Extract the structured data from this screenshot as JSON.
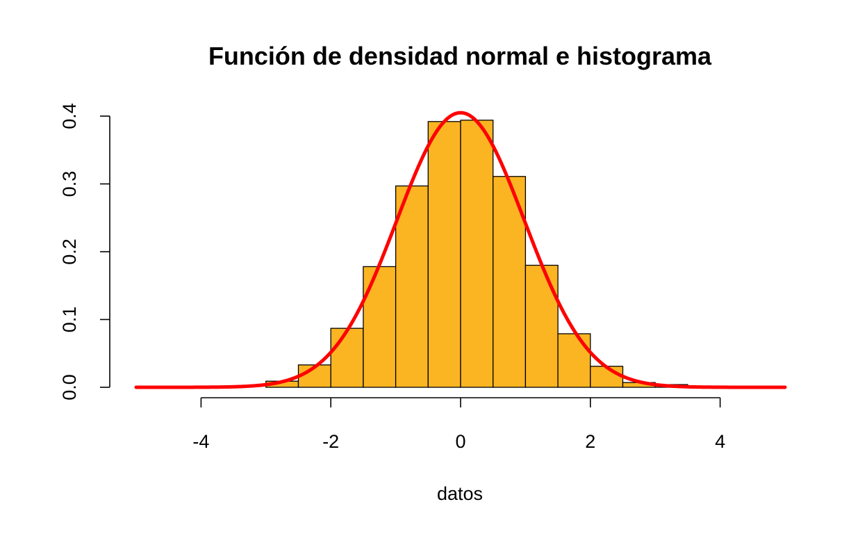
{
  "chart_data": {
    "type": "bar",
    "title": "Función de densidad normal e histograma",
    "xlabel": "datos",
    "ylabel": "",
    "xlim": [
      -5,
      5
    ],
    "ylim": [
      0,
      0.4
    ],
    "x_ticks": [
      "-4",
      "-2",
      "0",
      "2",
      "4"
    ],
    "x_tick_values": [
      -4,
      -2,
      0,
      2,
      4
    ],
    "y_ticks": [
      "0.0",
      "0.1",
      "0.2",
      "0.3",
      "0.4"
    ],
    "y_tick_values": [
      0,
      0.1,
      0.2,
      0.3,
      0.4
    ],
    "grid": false,
    "series": [
      {
        "kind": "histogram",
        "bin_edges": [
          -3.0,
          -2.5,
          -2.0,
          -1.5,
          -1.0,
          -0.5,
          0.0,
          0.5,
          1.0,
          1.5,
          2.0,
          2.5,
          3.0,
          3.5
        ],
        "density": [
          0.009,
          0.033,
          0.087,
          0.178,
          0.297,
          0.392,
          0.394,
          0.311,
          0.18,
          0.079,
          0.031,
          0.007,
          0.004
        ],
        "fill": "#FBB523",
        "stroke": "#000000"
      },
      {
        "kind": "density-curve",
        "distribution": "normal",
        "mean": 0,
        "sd": 0.985,
        "x_range": [
          -5,
          5
        ],
        "color": "#FF0000"
      }
    ]
  }
}
